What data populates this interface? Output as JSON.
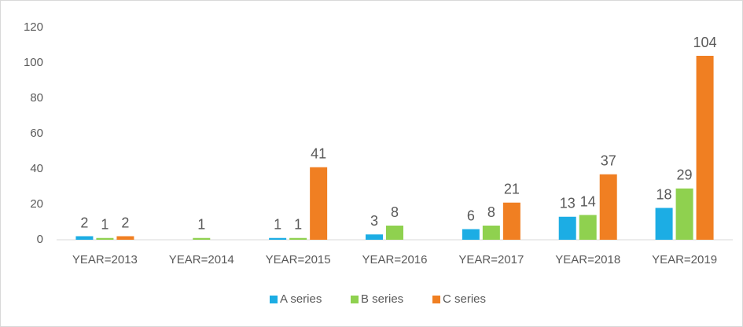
{
  "chart_data": {
    "type": "bar",
    "categories": [
      "YEAR=2013",
      "YEAR=2014",
      "YEAR=2015",
      "YEAR=2016",
      "YEAR=2017",
      "YEAR=2018",
      "YEAR=2019"
    ],
    "series": [
      {
        "name": "A series",
        "color": "#1cade4",
        "values": [
          2,
          null,
          1,
          3,
          6,
          13,
          18
        ]
      },
      {
        "name": "B series",
        "color": "#8fd14f",
        "values": [
          1,
          1,
          1,
          8,
          8,
          14,
          29
        ]
      },
      {
        "name": "C series",
        "color": "#f07f22",
        "values": [
          2,
          null,
          41,
          null,
          21,
          37,
          104
        ]
      }
    ],
    "ylim": [
      0,
      120
    ],
    "yticks": [
      0,
      20,
      40,
      60,
      80,
      100,
      120
    ],
    "grid": false,
    "legend": "bottom"
  }
}
